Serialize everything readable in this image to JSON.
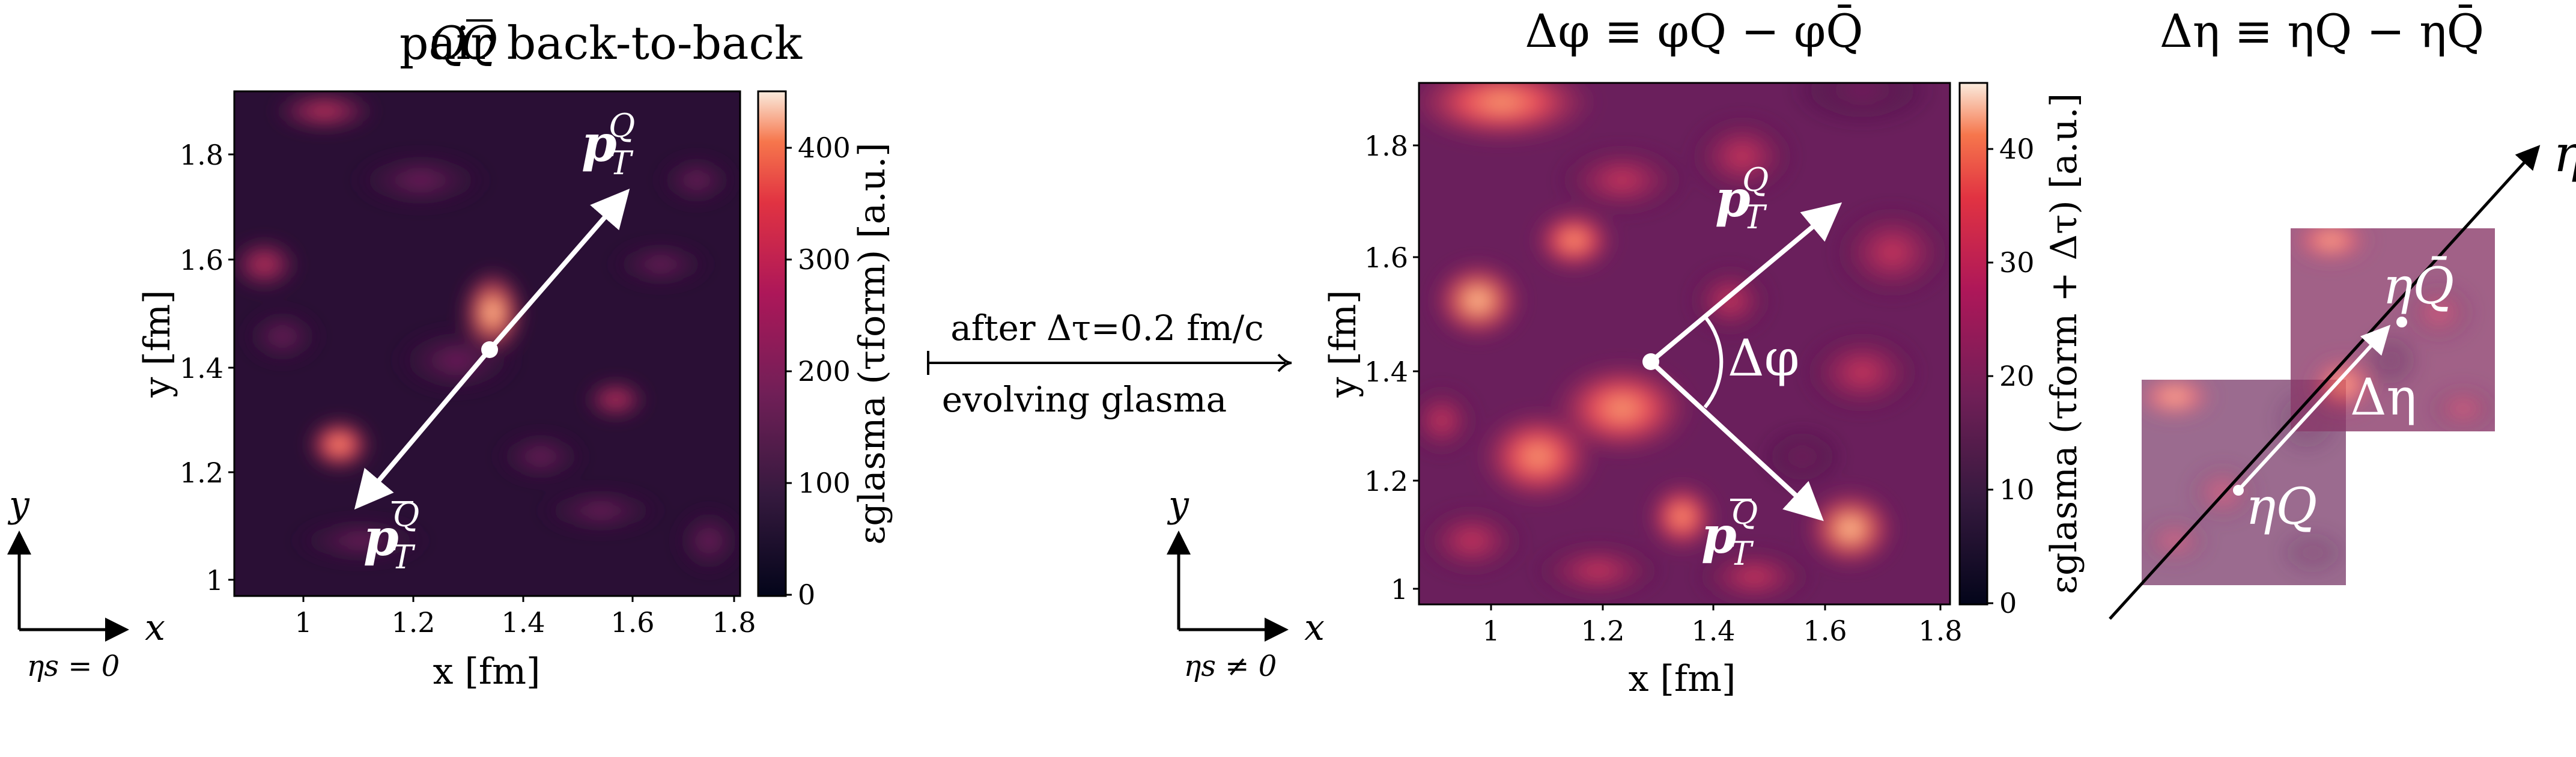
{
  "panel1": {
    "title": "QQ̅ pair back-to-back",
    "title_q": "Q",
    "title_qbar": "Q",
    "title_rest": " pair back-to-back",
    "xlabel": "x [fm]",
    "ylabel": "y [fm]",
    "xticks": [
      "1",
      "1.2",
      "1.4",
      "1.6",
      "1.8"
    ],
    "yticks": [
      "1",
      "1.2",
      "1.4",
      "1.6",
      "1.8"
    ],
    "colorbar_ticks": [
      "0",
      "100",
      "200",
      "300",
      "400"
    ],
    "colorbar_label": "εglasma (τform) [a.u.]",
    "arrow_up_label": "p",
    "arrow_up_sub": "T",
    "arrow_up_sup": "Q",
    "arrow_down_label": "p",
    "arrow_down_sub": "T",
    "arrow_down_sup": "Q̄",
    "axes_x": "x",
    "axes_y": "y",
    "axes_eta": "ηs = 0"
  },
  "middle": {
    "top_text": "after Δτ=0.2 fm/c",
    "bottom_text": "evolving glasma",
    "axes_x": "x",
    "axes_y": "y",
    "axes_eta": "ηs ≠ 0"
  },
  "panel2": {
    "title": "Δφ ≡ φQ − φQ̄",
    "xlabel": "x [fm]",
    "ylabel": "y [fm]",
    "xticks": [
      "1",
      "1.2",
      "1.4",
      "1.6",
      "1.8"
    ],
    "yticks": [
      "1",
      "1.2",
      "1.4",
      "1.6",
      "1.8"
    ],
    "colorbar_ticks": [
      "0",
      "10",
      "20",
      "30",
      "40"
    ],
    "colorbar_label": "εglasma (τform + Δτ) [a.u.]",
    "angle_label": "Δφ"
  },
  "panel3": {
    "title": "Δη ≡ ηQ − ηQ̄",
    "axis_label": "η",
    "point_upper": "ηQ̄",
    "point_lower": "ηQ",
    "delta_label": "Δη"
  },
  "colors": {
    "heat_dark": "#1a0b26",
    "heat_mid": "#8a1f55",
    "heat_hot": "#e9445a",
    "heat_light": "#fbe6d6"
  }
}
